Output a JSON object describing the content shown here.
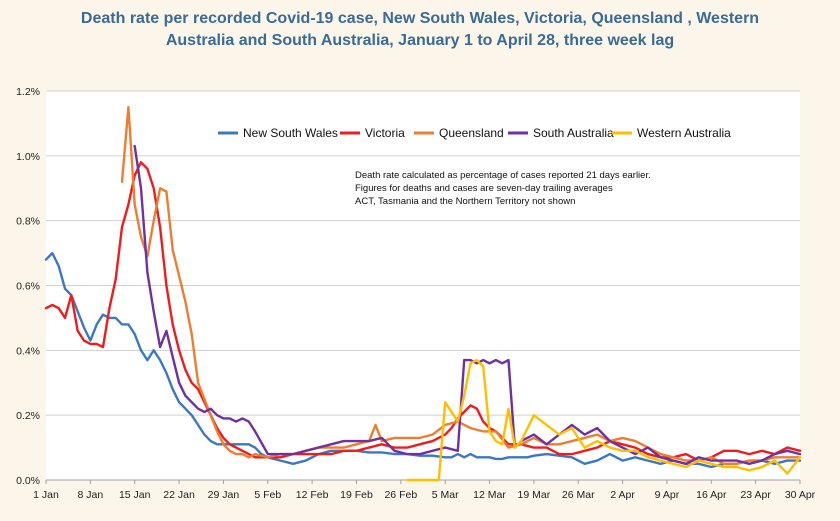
{
  "chart_data": {
    "type": "line",
    "title_lines": [
      "Death rate per recorded Covid-19 case, New South Wales, Victoria, Queensland , Western",
      "Australia and South Australia, January 1 to April 28, three week lag"
    ],
    "xlabel": "",
    "ylabel": "",
    "x_ticks": [
      "1 Jan",
      "8 Jan",
      "15 Jan",
      "22 Jan",
      "29 Jan",
      "5 Feb",
      "12 Feb",
      "19 Feb",
      "26 Feb",
      "5 Mar",
      "12 Mar",
      "19 Mar",
      "26 Mar",
      "2 Apr",
      "9 Apr",
      "16 Apr",
      "23 Apr",
      "30 Apr"
    ],
    "y_ticks": [
      "0.0%",
      "0.2%",
      "0.4%",
      "0.6%",
      "0.8%",
      "1.0%",
      "1.2%"
    ],
    "ylim": [
      0,
      1.2
    ],
    "y_unit": "%",
    "x_domain_days": [
      1,
      120
    ],
    "grid": "horizontal",
    "legend_position": "top",
    "notes": [
      "Death rate calculated as percentage of cases reported 21 days earlier.",
      "Figures for deaths and cases are seven-day trailing averages",
      "ACT, Tasmania and the Northern Territory not shown"
    ],
    "series": [
      {
        "name": "New South Wales",
        "color": "#3a78c4",
        "x": [
          1,
          2,
          3,
          4,
          5,
          6,
          7,
          8,
          9,
          10,
          11,
          12,
          13,
          14,
          15,
          16,
          17,
          18,
          19,
          20,
          21,
          22,
          23,
          24,
          25,
          26,
          27,
          28,
          29,
          30,
          31,
          32,
          33,
          34,
          35,
          36,
          37,
          38,
          39,
          40,
          42,
          44,
          46,
          48,
          50,
          52,
          54,
          56,
          58,
          60,
          62,
          64,
          65,
          66,
          67,
          68,
          69,
          70,
          71,
          72,
          73,
          74,
          75,
          76,
          77,
          78,
          80,
          82,
          84,
          86,
          88,
          90,
          92,
          94,
          96,
          98,
          100,
          102,
          104,
          106,
          108,
          110,
          112,
          114,
          116,
          118,
          120
        ],
        "y": [
          0.68,
          0.7,
          0.66,
          0.59,
          0.57,
          0.52,
          0.47,
          0.43,
          0.48,
          0.51,
          0.5,
          0.5,
          0.48,
          0.48,
          0.45,
          0.4,
          0.37,
          0.4,
          0.37,
          0.33,
          0.28,
          0.24,
          0.22,
          0.2,
          0.17,
          0.14,
          0.12,
          0.11,
          0.11,
          0.11,
          0.11,
          0.11,
          0.11,
          0.1,
          0.08,
          0.07,
          0.065,
          0.06,
          0.055,
          0.05,
          0.06,
          0.08,
          0.09,
          0.09,
          0.09,
          0.085,
          0.085,
          0.08,
          0.08,
          0.075,
          0.075,
          0.07,
          0.07,
          0.08,
          0.07,
          0.08,
          0.07,
          0.07,
          0.07,
          0.065,
          0.065,
          0.07,
          0.07,
          0.07,
          0.07,
          0.075,
          0.08,
          0.075,
          0.07,
          0.05,
          0.06,
          0.08,
          0.06,
          0.07,
          0.06,
          0.05,
          0.06,
          0.05,
          0.05,
          0.04,
          0.05,
          0.05,
          0.06,
          0.06,
          0.05,
          0.06,
          0.06
        ]
      },
      {
        "name": "Victoria",
        "color": "#f01c1c",
        "x": [
          1,
          2,
          3,
          4,
          5,
          6,
          7,
          8,
          9,
          10,
          11,
          12,
          13,
          14,
          15,
          16,
          17,
          18,
          19,
          20,
          21,
          22,
          23,
          24,
          25,
          26,
          27,
          28,
          29,
          30,
          31,
          32,
          34,
          36,
          38,
          40,
          42,
          44,
          46,
          48,
          50,
          52,
          54,
          56,
          58,
          60,
          62,
          64,
          65,
          66,
          67,
          68,
          69,
          70,
          71,
          72,
          74,
          76,
          78,
          80,
          82,
          84,
          86,
          88,
          90,
          92,
          94,
          96,
          98,
          100,
          102,
          104,
          106,
          108,
          110,
          112,
          114,
          116,
          118,
          120
        ],
        "y": [
          0.53,
          0.54,
          0.53,
          0.5,
          0.57,
          0.46,
          0.43,
          0.42,
          0.42,
          0.41,
          0.53,
          0.62,
          0.78,
          0.85,
          0.94,
          0.98,
          0.96,
          0.9,
          0.78,
          0.6,
          0.48,
          0.4,
          0.34,
          0.3,
          0.28,
          0.24,
          0.2,
          0.16,
          0.13,
          0.11,
          0.1,
          0.09,
          0.07,
          0.07,
          0.07,
          0.08,
          0.08,
          0.08,
          0.08,
          0.09,
          0.09,
          0.1,
          0.11,
          0.1,
          0.1,
          0.11,
          0.12,
          0.14,
          0.16,
          0.19,
          0.21,
          0.23,
          0.22,
          0.18,
          0.16,
          0.15,
          0.11,
          0.11,
          0.1,
          0.1,
          0.08,
          0.08,
          0.09,
          0.1,
          0.12,
          0.11,
          0.1,
          0.08,
          0.07,
          0.07,
          0.08,
          0.06,
          0.07,
          0.09,
          0.09,
          0.08,
          0.09,
          0.08,
          0.1,
          0.09
        ]
      },
      {
        "name": "Queensland",
        "color": "#ed7d31",
        "x": [
          13,
          14,
          15,
          16,
          17,
          18,
          19,
          20,
          21,
          22,
          23,
          24,
          25,
          26,
          27,
          28,
          29,
          30,
          31,
          32,
          33,
          34,
          36,
          38,
          40,
          42,
          44,
          46,
          48,
          50,
          52,
          53,
          54,
          56,
          58,
          60,
          62,
          64,
          66,
          68,
          70,
          72,
          74,
          76,
          78,
          80,
          82,
          84,
          86,
          88,
          90,
          92,
          94,
          96,
          98,
          100,
          102,
          104,
          106,
          108,
          110,
          112,
          114,
          116,
          118,
          120
        ],
        "y": [
          0.92,
          1.15,
          0.85,
          0.75,
          0.69,
          0.8,
          0.9,
          0.89,
          0.71,
          0.63,
          0.55,
          0.45,
          0.3,
          0.25,
          0.2,
          0.15,
          0.11,
          0.09,
          0.08,
          0.08,
          0.07,
          0.08,
          0.07,
          0.08,
          0.08,
          0.09,
          0.1,
          0.1,
          0.1,
          0.11,
          0.12,
          0.17,
          0.12,
          0.13,
          0.13,
          0.13,
          0.14,
          0.17,
          0.18,
          0.16,
          0.15,
          0.15,
          0.1,
          0.11,
          0.13,
          0.11,
          0.11,
          0.12,
          0.13,
          0.14,
          0.12,
          0.13,
          0.12,
          0.1,
          0.08,
          0.07,
          0.06,
          0.06,
          0.07,
          0.05,
          0.05,
          0.06,
          0.06,
          0.07,
          0.07,
          0.07
        ]
      },
      {
        "name": "South Australia",
        "color": "#7030a0",
        "x": [
          15,
          16,
          17,
          18,
          19,
          20,
          21,
          22,
          23,
          24,
          25,
          26,
          27,
          28,
          29,
          30,
          31,
          32,
          33,
          34,
          36,
          38,
          40,
          42,
          44,
          46,
          48,
          50,
          52,
          54,
          56,
          58,
          60,
          62,
          64,
          66,
          67,
          68,
          69,
          70,
          71,
          72,
          73,
          74,
          75,
          76,
          78,
          80,
          82,
          84,
          86,
          88,
          90,
          92,
          94,
          96,
          98,
          100,
          102,
          104,
          106,
          108,
          110,
          112,
          114,
          116,
          118,
          120
        ],
        "y": [
          1.03,
          0.9,
          0.64,
          0.52,
          0.41,
          0.46,
          0.38,
          0.3,
          0.26,
          0.24,
          0.22,
          0.21,
          0.22,
          0.2,
          0.19,
          0.19,
          0.18,
          0.19,
          0.18,
          0.15,
          0.08,
          0.08,
          0.08,
          0.09,
          0.1,
          0.11,
          0.12,
          0.12,
          0.12,
          0.13,
          0.09,
          0.08,
          0.08,
          0.09,
          0.1,
          0.09,
          0.37,
          0.37,
          0.36,
          0.37,
          0.36,
          0.37,
          0.36,
          0.37,
          0.1,
          0.12,
          0.14,
          0.11,
          0.14,
          0.17,
          0.14,
          0.16,
          0.12,
          0.1,
          0.08,
          0.1,
          0.07,
          0.06,
          0.05,
          0.07,
          0.06,
          0.06,
          0.06,
          0.05,
          0.06,
          0.08,
          0.09,
          0.08
        ]
      },
      {
        "name": "Western Australia",
        "color": "#ffbf00",
        "x": [
          58,
          62,
          63,
          64,
          65,
          66,
          67,
          68,
          69,
          70,
          71,
          72,
          73,
          74,
          75,
          76,
          78,
          80,
          82,
          84,
          86,
          88,
          90,
          92,
          94,
          96,
          98,
          100,
          102,
          104,
          106,
          108,
          110,
          112,
          114,
          116,
          118,
          120
        ],
        "y": [
          0.0,
          0.0,
          0.0,
          0.24,
          0.21,
          0.18,
          0.26,
          0.36,
          0.37,
          0.35,
          0.15,
          0.12,
          0.11,
          0.22,
          0.1,
          0.12,
          0.2,
          0.17,
          0.14,
          0.16,
          0.1,
          0.12,
          0.1,
          0.09,
          0.09,
          0.07,
          0.06,
          0.05,
          0.04,
          0.06,
          0.05,
          0.04,
          0.04,
          0.03,
          0.04,
          0.06,
          0.02,
          0.07
        ]
      }
    ]
  }
}
